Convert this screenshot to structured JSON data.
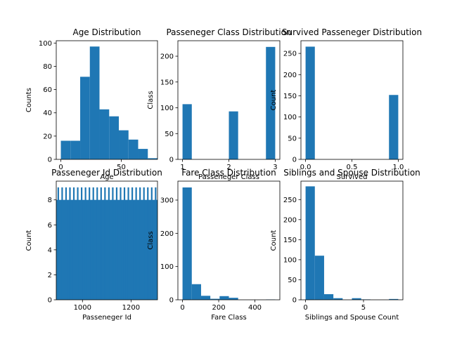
{
  "chart_data": [
    {
      "type": "bar",
      "title": "Age Distribution",
      "xlabel": "Age",
      "ylabel": "Counts",
      "xlim": [
        -3.8,
        80.0
      ],
      "ylim": [
        0,
        102
      ],
      "bins": [
        [
          0,
          8
        ],
        [
          8,
          16
        ],
        [
          16,
          24
        ],
        [
          24,
          32
        ],
        [
          32,
          40
        ],
        [
          40,
          48
        ],
        [
          48,
          56
        ],
        [
          56,
          64
        ],
        [
          64,
          72
        ],
        [
          72,
          80
        ]
      ],
      "values": [
        16,
        16,
        71,
        97,
        43,
        37,
        25,
        17,
        9,
        1
      ],
      "xticks": [
        0,
        50
      ],
      "xticklabels": [
        "0",
        "50"
      ],
      "yticks": [
        0,
        20,
        40,
        60,
        80,
        100
      ],
      "yticklabels": [
        "0",
        "20",
        "40",
        "60",
        "80",
        "100"
      ]
    },
    {
      "type": "bar",
      "title": "Passeneger Class Distribution",
      "xlabel": "Passeneger Class",
      "ylabel": "Class",
      "xlim": [
        0.9,
        3.1
      ],
      "ylim": [
        0,
        230
      ],
      "bins": [
        [
          1.0,
          1.2
        ],
        [
          1.2,
          1.4
        ],
        [
          1.4,
          1.6
        ],
        [
          1.6,
          1.8
        ],
        [
          1.8,
          2.0
        ],
        [
          2.0,
          2.2
        ],
        [
          2.2,
          2.4
        ],
        [
          2.4,
          2.6
        ],
        [
          2.6,
          2.8
        ],
        [
          2.8,
          3.0
        ]
      ],
      "values": [
        107,
        0,
        0,
        0,
        0,
        93,
        0,
        0,
        0,
        218
      ],
      "xticks": [
        1,
        2,
        3
      ],
      "xticklabels": [
        "1",
        "2",
        "3"
      ],
      "yticks": [
        0,
        50,
        100,
        150,
        200
      ],
      "yticklabels": [
        "0",
        "50",
        "100",
        "150",
        "200"
      ]
    },
    {
      "type": "bar",
      "title": "Survived Passeneger  Distribution",
      "xlabel": "Survived",
      "ylabel": "Count",
      "xlim": [
        -0.05,
        1.05
      ],
      "ylim": [
        0,
        280
      ],
      "bins": [
        [
          0.0,
          0.1
        ],
        [
          0.1,
          0.2
        ],
        [
          0.2,
          0.3
        ],
        [
          0.3,
          0.4
        ],
        [
          0.4,
          0.5
        ],
        [
          0.5,
          0.6
        ],
        [
          0.6,
          0.7
        ],
        [
          0.7,
          0.8
        ],
        [
          0.8,
          0.9
        ],
        [
          0.9,
          1.0
        ]
      ],
      "values": [
        266,
        0,
        0,
        0,
        0,
        0,
        0,
        0,
        0,
        152
      ],
      "xticks": [
        0.0,
        0.5,
        1.0
      ],
      "xticklabels": [
        "0.0",
        "0.5",
        "1.0"
      ],
      "yticks": [
        0,
        50,
        100,
        150,
        200,
        250
      ],
      "yticklabels": [
        "0",
        "50",
        "100",
        "150",
        "200",
        "250"
      ]
    },
    {
      "type": "bar",
      "title": "Passeneger Id Distribution",
      "xlabel": "Passeneger Id",
      "ylabel": "Count",
      "xlim": [
        892,
        1309
      ],
      "ylim": [
        0,
        9.5
      ],
      "bins": [
        [
          892,
          1309
        ]
      ],
      "values": [
        8
      ],
      "spikes": {
        "count": 26,
        "value": 9
      },
      "xticks": [
        1000,
        1200
      ],
      "xticklabels": [
        "1000",
        "1200"
      ],
      "yticks": [
        0,
        2,
        4,
        6,
        8
      ],
      "yticklabels": [
        "0",
        "2",
        "4",
        "6",
        "8"
      ]
    },
    {
      "type": "bar",
      "title": "Fare Class Distribution",
      "xlabel": "Fare Class",
      "ylabel": "Class",
      "xlim": [
        -25.6,
        537.9
      ],
      "ylim": [
        0,
        357
      ],
      "bins": [
        [
          0,
          51.2
        ],
        [
          51.2,
          102.5
        ],
        [
          102.5,
          153.7
        ],
        [
          153.7,
          204.9
        ],
        [
          204.9,
          256.2
        ],
        [
          256.2,
          307.4
        ],
        [
          307.4,
          358.6
        ],
        [
          358.6,
          409.9
        ],
        [
          409.9,
          461.1
        ],
        [
          461.1,
          512.3
        ]
      ],
      "values": [
        338,
        47,
        12,
        3,
        11,
        6,
        0,
        0,
        0,
        1
      ],
      "xticks": [
        0,
        200,
        400
      ],
      "xticklabels": [
        "0",
        "200",
        "400"
      ],
      "yticks": [
        0,
        100,
        200,
        300
      ],
      "yticklabels": [
        "0",
        "100",
        "200",
        "300"
      ]
    },
    {
      "type": "bar",
      "title": "Siblings and Spouse Distribution",
      "xlabel": "Siblings and Spouse Count",
      "ylabel": "Count",
      "xlim": [
        -0.4,
        8.4
      ],
      "ylim": [
        0,
        296
      ],
      "bins": [
        [
          0,
          0.8
        ],
        [
          0.8,
          1.6
        ],
        [
          1.6,
          2.4
        ],
        [
          2.4,
          3.2
        ],
        [
          3.2,
          4.0
        ],
        [
          4.0,
          4.8
        ],
        [
          4.8,
          5.6
        ],
        [
          5.6,
          6.4
        ],
        [
          6.4,
          7.2
        ],
        [
          7.2,
          8.0
        ]
      ],
      "values": [
        283,
        110,
        14,
        4,
        0,
        4,
        1,
        0,
        0,
        2
      ],
      "xticks": [
        0,
        5
      ],
      "xticklabels": [
        "0",
        "5"
      ],
      "yticks": [
        0,
        50,
        100,
        150,
        200,
        250
      ],
      "yticklabels": [
        "0",
        "50",
        "100",
        "150",
        "200",
        "250"
      ]
    }
  ],
  "colors": {
    "bar": "#1f77b4",
    "axis": "#000000",
    "background": "#ffffff"
  }
}
